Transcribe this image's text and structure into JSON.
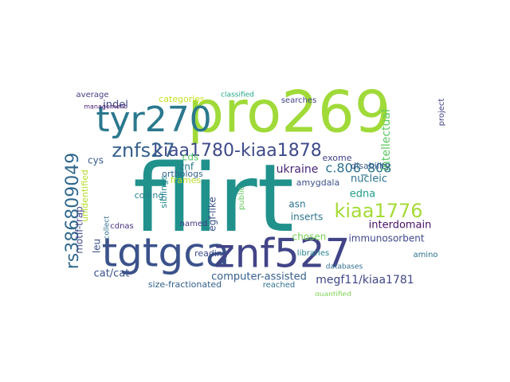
{
  "words": [
    {
      "t": "flirt",
      "c": "#21918c"
    },
    {
      "t": "pro269",
      "c": "#a0da39"
    },
    {
      "t": "tgtgca",
      "c": "#3b528b"
    },
    {
      "t": "znf527",
      "c": "#414487"
    },
    {
      "t": "tyr270",
      "c": "#2a788e"
    },
    {
      "t": "rs386809049",
      "c": "#31688e"
    },
    {
      "t": "kiaa1780-kiaa1878",
      "c": "#3e4a89"
    },
    {
      "t": "kiaa1776",
      "c": "#a5db36"
    },
    {
      "t": "znfs27",
      "c": "#35608d"
    },
    {
      "t": "c.806_808",
      "c": "#2c728e"
    },
    {
      "t": "intellectual",
      "c": "#5ec962"
    },
    {
      "t": "ukraine",
      "c": "#482576"
    },
    {
      "t": "megf11/kiaa1781",
      "c": "#3f4788"
    },
    {
      "t": "cat/cat",
      "c": "#3b518b"
    },
    {
      "t": "computer-assisted",
      "c": "#355f8d"
    },
    {
      "t": "interdomain",
      "c": "#471063"
    },
    {
      "t": "edna",
      "c": "#1f9e89"
    },
    {
      "t": "nucleic",
      "c": "#2d708e"
    },
    {
      "t": "egf-like",
      "c": "#3a538b"
    },
    {
      "t": "motif-trap",
      "c": "#404688"
    },
    {
      "t": "chosen",
      "c": "#75d054"
    },
    {
      "t": "inserts",
      "c": "#2c738e"
    },
    {
      "t": "immunosorbent",
      "c": "#3f4889"
    },
    {
      "t": "size-fractionated",
      "c": "#34608d"
    },
    {
      "t": "unidentified",
      "c": "#b5de2b"
    },
    {
      "t": "siblings",
      "c": "#23888e"
    },
    {
      "t": "coding",
      "c": "#26818e"
    },
    {
      "t": "categories",
      "c": "#c8e020"
    },
    {
      "t": "indel",
      "c": "#3e4989"
    },
    {
      "t": "cys",
      "c": "#365c8d"
    },
    {
      "t": "asn",
      "c": "#2c728e"
    },
    {
      "t": "amygdala",
      "c": "#3b528b"
    },
    {
      "t": "disability",
      "c": "#375b8d"
    },
    {
      "t": "exome",
      "c": "#424086"
    },
    {
      "t": "frames",
      "c": "#b8de29"
    },
    {
      "t": "cds",
      "c": "#5ac864"
    },
    {
      "t": "znf",
      "c": "#2a788e"
    },
    {
      "t": "leu",
      "c": "#3b518b"
    },
    {
      "t": "reading",
      "c": "#3e4989"
    },
    {
      "t": "orthologs",
      "c": "#32648e"
    },
    {
      "t": "named",
      "c": "#443a83"
    },
    {
      "t": "cdnas",
      "c": "#46307e"
    },
    {
      "t": "public",
      "c": "#63cb5f"
    },
    {
      "t": "libraries",
      "c": "#26828e"
    },
    {
      "t": "reached",
      "c": "#2e6f8e"
    },
    {
      "t": "quantified",
      "c": "#7ad151"
    },
    {
      "t": "amino",
      "c": "#2d708e"
    },
    {
      "t": "project",
      "c": "#414487"
    },
    {
      "t": "average",
      "c": "#433e85"
    },
    {
      "t": "searches",
      "c": "#424186"
    },
    {
      "t": "classified",
      "c": "#22a884"
    },
    {
      "t": "databases",
      "c": "#2e6e8e"
    },
    {
      "t": "management",
      "c": "#48186a"
    },
    {
      "t": "collect",
      "c": "#2e6f8e"
    }
  ]
}
